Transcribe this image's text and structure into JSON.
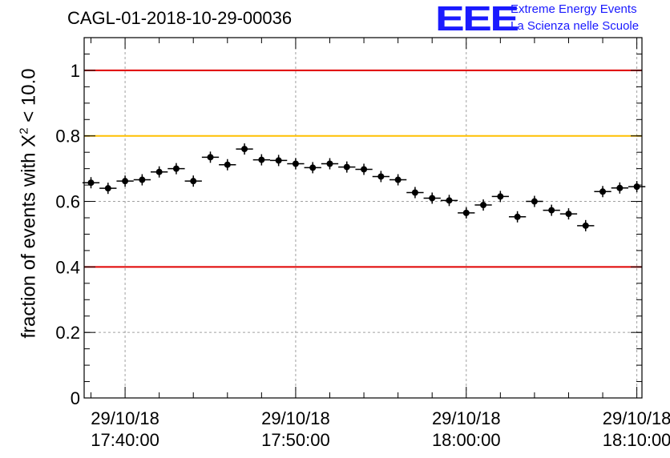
{
  "header": {
    "run_title": "CAGL-01-2018-10-29-00036",
    "logo_text": "EEE",
    "logo_line1": "Extreme Energy Events",
    "logo_line2": "La Scienza nelle Scuole"
  },
  "colors": {
    "upper_limit": "#e00000",
    "warning": "#ffc000",
    "lower_limit": "#e00000",
    "markers": "#000000",
    "logo": "#1a1aff",
    "grid": "#a0a0a0"
  },
  "chart_data": {
    "type": "scatter",
    "title": "CAGL-01-2018-10-29-00036",
    "xlabel": "",
    "ylabel_prefix": "fraction of events with X",
    "ylabel_sup": "2",
    "ylabel_suffix": " < 10.0",
    "x_unit": "minutes after 29/10/18 17:40:00",
    "xlim": [
      -2.4,
      30.3
    ],
    "ylim": [
      0,
      1.1
    ],
    "x_ticks": [
      {
        "x": 0,
        "date": "29/10/18",
        "time": "17:40:00"
      },
      {
        "x": 10,
        "date": "29/10/18",
        "time": "17:50:00"
      },
      {
        "x": 20,
        "date": "29/10/18",
        "time": "18:00:00"
      },
      {
        "x": 30,
        "date": "29/10/18",
        "time": "18:10:00"
      }
    ],
    "y_ticks": [
      {
        "v": 0,
        "label": "0"
      },
      {
        "v": 0.2,
        "label": "0.2"
      },
      {
        "v": 0.4,
        "label": "0.4"
      },
      {
        "v": 0.6,
        "label": "0.6"
      },
      {
        "v": 0.8,
        "label": "0.8"
      },
      {
        "v": 1.0,
        "label": "1"
      }
    ],
    "reference_lines": [
      {
        "y": 1.0,
        "color": "#e00000"
      },
      {
        "y": 0.8,
        "color": "#ffc000"
      },
      {
        "y": 0.4,
        "color": "#e00000"
      }
    ],
    "bin_width": 1.0,
    "points": [
      {
        "x": -2.0,
        "y": 0.657
      },
      {
        "x": -1.0,
        "y": 0.64
      },
      {
        "x": 0.0,
        "y": 0.662
      },
      {
        "x": 1.0,
        "y": 0.666
      },
      {
        "x": 2.0,
        "y": 0.69
      },
      {
        "x": 3.0,
        "y": 0.7
      },
      {
        "x": 4.0,
        "y": 0.662
      },
      {
        "x": 5.0,
        "y": 0.735
      },
      {
        "x": 6.0,
        "y": 0.712
      },
      {
        "x": 7.0,
        "y": 0.76
      },
      {
        "x": 8.0,
        "y": 0.727
      },
      {
        "x": 9.0,
        "y": 0.725
      },
      {
        "x": 10.0,
        "y": 0.715
      },
      {
        "x": 11.0,
        "y": 0.703
      },
      {
        "x": 12.0,
        "y": 0.715
      },
      {
        "x": 13.0,
        "y": 0.705
      },
      {
        "x": 14.0,
        "y": 0.698
      },
      {
        "x": 15.0,
        "y": 0.676
      },
      {
        "x": 16.0,
        "y": 0.666
      },
      {
        "x": 17.0,
        "y": 0.627
      },
      {
        "x": 18.0,
        "y": 0.61
      },
      {
        "x": 19.0,
        "y": 0.603
      },
      {
        "x": 20.0,
        "y": 0.565
      },
      {
        "x": 21.0,
        "y": 0.589
      },
      {
        "x": 22.0,
        "y": 0.615
      },
      {
        "x": 23.0,
        "y": 0.553
      },
      {
        "x": 24.0,
        "y": 0.6
      },
      {
        "x": 25.0,
        "y": 0.573
      },
      {
        "x": 26.0,
        "y": 0.562
      },
      {
        "x": 27.0,
        "y": 0.526
      },
      {
        "x": 28.0,
        "y": 0.63
      },
      {
        "x": 29.0,
        "y": 0.641
      },
      {
        "x": 30.0,
        "y": 0.645
      }
    ]
  }
}
